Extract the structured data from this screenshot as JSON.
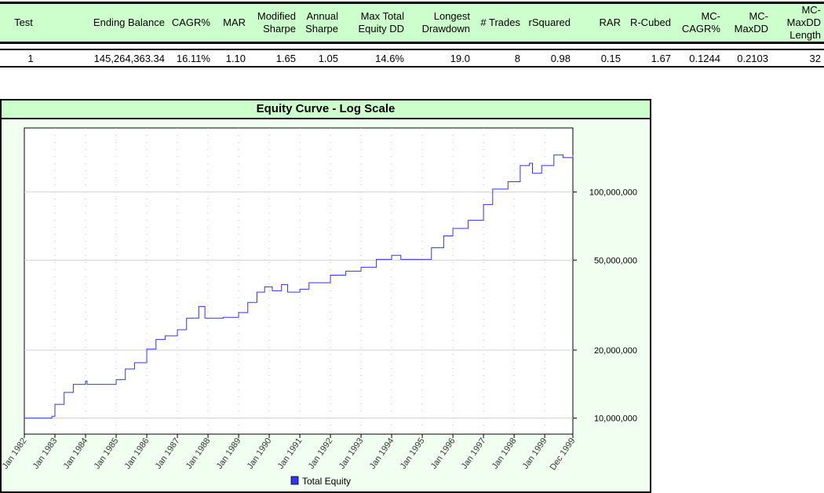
{
  "table": {
    "headers": [
      "Test",
      "Ending Balance",
      "CAGR%",
      "MAR",
      "Modified Sharpe",
      "Annual Sharpe",
      "Max Total Equity DD",
      "Longest Drawdown",
      "# Trades",
      "rSquared",
      "RAR",
      "R-Cubed",
      "MC-CAGR%",
      "MC-MaxDD",
      "MC-MaxDD Length"
    ],
    "values": [
      "1",
      "145,264,363.34",
      "16.11%",
      "1.10",
      "1.65",
      "1.05",
      "14.6%",
      "19.0",
      "8",
      "0.98",
      "0.15",
      "1.67",
      "0.1244",
      "0.2103",
      "32"
    ]
  },
  "chart_data": {
    "type": "line",
    "title": "Equity Curve - Log Scale",
    "yscale": "log",
    "ylim": [
      8500000,
      192000000
    ],
    "xlim": [
      1982.0,
      1999.92
    ],
    "yticks": [
      {
        "v": 10000000,
        "label": "10,000,000"
      },
      {
        "v": 20000000,
        "label": "20,000,000"
      },
      {
        "v": 50000000,
        "label": "50,000,000"
      },
      {
        "v": 100000000,
        "label": "100,000,000"
      }
    ],
    "xticks": [
      {
        "v": 1982,
        "label": "Jan 1982"
      },
      {
        "v": 1983,
        "label": "Jan 1983"
      },
      {
        "v": 1984,
        "label": "Jan 1984"
      },
      {
        "v": 1985,
        "label": "Jan 1985"
      },
      {
        "v": 1986,
        "label": "Jan 1986"
      },
      {
        "v": 1987,
        "label": "Jan 1987"
      },
      {
        "v": 1988,
        "label": "Jan 1988"
      },
      {
        "v": 1989,
        "label": "Jan 1989"
      },
      {
        "v": 1990,
        "label": "Jan 1990"
      },
      {
        "v": 1991,
        "label": "Jan 1991"
      },
      {
        "v": 1992,
        "label": "Jan 1992"
      },
      {
        "v": 1993,
        "label": "Jan 1993"
      },
      {
        "v": 1994,
        "label": "Jan 1994"
      },
      {
        "v": 1995,
        "label": "Jan 1995"
      },
      {
        "v": 1996,
        "label": "Jan 1996"
      },
      {
        "v": 1997,
        "label": "Jan 1997"
      },
      {
        "v": 1998,
        "label": "Jan 1998"
      },
      {
        "v": 1999,
        "label": "Jan 1999"
      },
      {
        "v": 1999.92,
        "label": "Dec 1999"
      }
    ],
    "legend": {
      "label": "Total Equity",
      "color": "#3333ff",
      "position": "bottom"
    },
    "series": [
      {
        "name": "Total Equity",
        "x": [
          1982.0,
          1982.9,
          1983.0,
          1983.3,
          1983.6,
          1984.0,
          1984.05,
          1985.0,
          1985.3,
          1985.6,
          1986.0,
          1986.3,
          1986.6,
          1987.0,
          1987.3,
          1987.7,
          1987.9,
          1988.5,
          1989.0,
          1989.3,
          1989.6,
          1989.85,
          1990.1,
          1990.4,
          1990.6,
          1991.0,
          1991.3,
          1992.0,
          1992.5,
          1993.0,
          1993.5,
          1994.0,
          1994.3,
          1995.0,
          1995.3,
          1995.7,
          1996.0,
          1996.5,
          1997.0,
          1997.3,
          1997.8,
          1998.2,
          1998.5,
          1998.6,
          1998.9,
          1999.3,
          1999.6,
          1999.92
        ],
        "y": [
          10000000,
          10200000,
          11500000,
          13000000,
          14100000,
          14600000,
          14100000,
          14800000,
          16500000,
          17600000,
          20200000,
          22300000,
          23100000,
          24600000,
          27700000,
          31200000,
          27700000,
          27900000,
          29300000,
          32500000,
          36100000,
          38100000,
          36600000,
          39000000,
          36100000,
          37200000,
          39700000,
          42900000,
          44700000,
          46500000,
          50400000,
          52500000,
          50400000,
          50400000,
          56700000,
          64000000,
          69000000,
          75000000,
          88000000,
          103000000,
          111000000,
          131000000,
          134000000,
          121000000,
          131000000,
          146000000,
          142000000,
          145264363
        ]
      }
    ]
  }
}
